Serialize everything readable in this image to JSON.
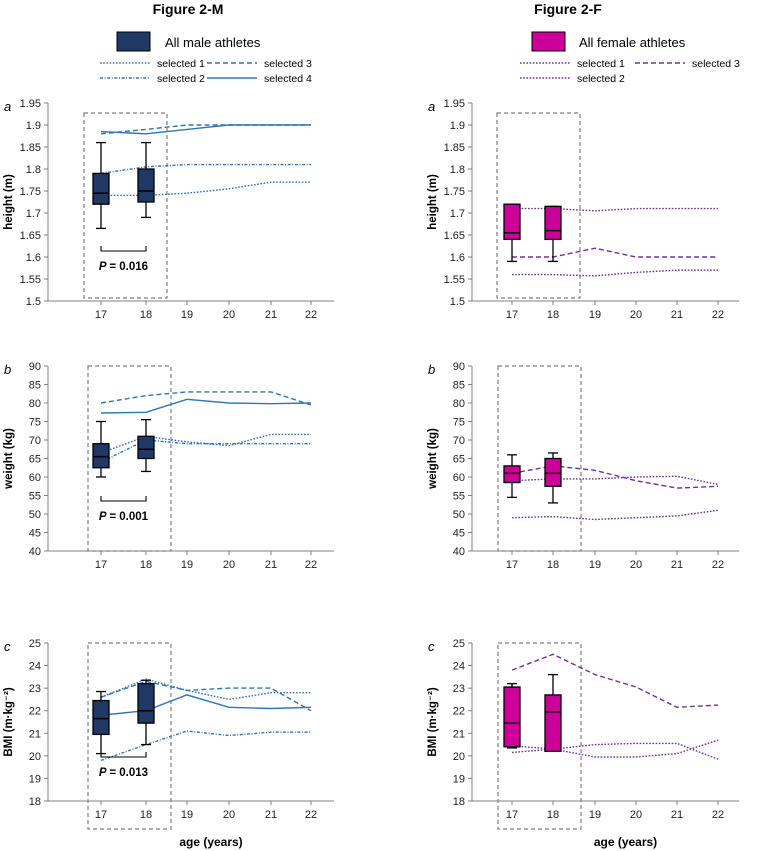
{
  "colors": {
    "male": "#2e75b6",
    "male_box": "#1f3864",
    "female": "#7030a0",
    "female_box": "#cc0099",
    "axis": "#808080"
  },
  "figures": [
    {
      "title": "Figure 2-M",
      "legend_main": "All male athletes",
      "legend_items": [
        "selected 1",
        "selected 2",
        "selected 3",
        "selected 4"
      ]
    },
    {
      "title": "Figure 2-F",
      "legend_main": "All female athletes",
      "legend_items": [
        "selected 1",
        "selected 2",
        "selected 3"
      ]
    }
  ],
  "chart_data": [
    {
      "id": "male-height",
      "type": "line",
      "figure": "Figure 2-M",
      "panel": "a",
      "title": "",
      "xlabel": "",
      "ylabel": "height (m)",
      "categories": [
        "17",
        "18",
        "19",
        "20",
        "21",
        "22"
      ],
      "yticks": [
        "1.5",
        "1.55",
        "1.6",
        "1.65",
        "1.7",
        "1.75",
        "1.8",
        "1.85",
        "1.9",
        "1.95"
      ],
      "ylim": [
        1.5,
        1.95
      ],
      "series": [
        {
          "name": "selected 1",
          "style": "dotted",
          "values": [
            1.74,
            1.74,
            1.745,
            1.755,
            1.77,
            1.77
          ]
        },
        {
          "name": "selected 2",
          "style": "dashdot",
          "values": [
            1.79,
            1.805,
            1.81,
            1.81,
            1.81,
            1.81
          ]
        },
        {
          "name": "selected 3",
          "style": "dashed",
          "values": [
            1.88,
            1.89,
            1.9,
            1.9,
            1.9,
            1.9
          ]
        },
        {
          "name": "selected 4",
          "style": "solid",
          "values": [
            1.885,
            1.88,
            1.89,
            1.9,
            1.9,
            1.9
          ]
        }
      ],
      "boxes": [
        {
          "x": "17",
          "min": 1.665,
          "q1": 1.72,
          "median": 1.745,
          "q3": 1.79,
          "max": 1.86
        },
        {
          "x": "18",
          "min": 1.69,
          "q1": 1.725,
          "median": 1.75,
          "q3": 1.8,
          "max": 1.86
        }
      ],
      "pvalue": "= 0.016"
    },
    {
      "id": "female-height",
      "type": "line",
      "figure": "Figure 2-F",
      "panel": "a",
      "title": "",
      "xlabel": "",
      "ylabel": "height (m)",
      "categories": [
        "17",
        "18",
        "19",
        "20",
        "21",
        "22"
      ],
      "yticks": [
        "1.5",
        "1.55",
        "1.6",
        "1.65",
        "1.7",
        "1.75",
        "1.8",
        "1.85",
        "1.9",
        "1.95"
      ],
      "ylim": [
        1.5,
        1.95
      ],
      "series": [
        {
          "name": "selected 1",
          "style": "dotted",
          "values": [
            1.71,
            1.71,
            1.705,
            1.71,
            1.71,
            1.71
          ]
        },
        {
          "name": "selected 2",
          "style": "dotted",
          "values": [
            1.56,
            1.56,
            1.557,
            1.565,
            1.57,
            1.57
          ]
        },
        {
          "name": "selected 3",
          "style": "dashed",
          "values": [
            1.6,
            1.6,
            1.62,
            1.6,
            1.6,
            1.6
          ]
        }
      ],
      "boxes": [
        {
          "x": "17",
          "min": 1.59,
          "q1": 1.64,
          "median": 1.655,
          "q3": 1.72,
          "max": 1.72
        },
        {
          "x": "18",
          "min": 1.59,
          "q1": 1.64,
          "median": 1.66,
          "q3": 1.715,
          "max": 1.715
        }
      ]
    },
    {
      "id": "male-weight",
      "type": "line",
      "figure": "Figure 2-M",
      "panel": "b",
      "title": "",
      "xlabel": "",
      "ylabel": "weight (kg)",
      "categories": [
        "17",
        "18",
        "19",
        "20",
        "21",
        "22"
      ],
      "yticks": [
        "40",
        "45",
        "50",
        "55",
        "60",
        "65",
        "70",
        "75",
        "80",
        "85",
        "90"
      ],
      "ylim": [
        40,
        90
      ],
      "series": [
        {
          "name": "selected 1",
          "style": "dotted",
          "values": [
            66.5,
            71,
            69.5,
            68.5,
            71.5,
            71.5
          ]
        },
        {
          "name": "selected 2",
          "style": "dashdot",
          "values": [
            64,
            70,
            69,
            69,
            69,
            69
          ]
        },
        {
          "name": "selected 3",
          "style": "dashed",
          "values": [
            80,
            82,
            83,
            83,
            83,
            79.5
          ]
        },
        {
          "name": "selected 4",
          "style": "solid",
          "values": [
            77.3,
            77.5,
            81,
            80,
            79.8,
            80
          ]
        }
      ],
      "boxes": [
        {
          "x": "17",
          "min": 60,
          "q1": 62.5,
          "median": 65.5,
          "q3": 69,
          "max": 75
        },
        {
          "x": "18",
          "min": 61.5,
          "q1": 65,
          "median": 67.5,
          "q3": 71,
          "max": 75.5
        }
      ],
      "pvalue": "= 0.001"
    },
    {
      "id": "female-weight",
      "type": "line",
      "figure": "Figure 2-F",
      "panel": "b",
      "title": "",
      "xlabel": "",
      "ylabel": "weight (kg)",
      "categories": [
        "17",
        "18",
        "19",
        "20",
        "21",
        "22"
      ],
      "yticks": [
        "40",
        "45",
        "50",
        "55",
        "60",
        "65",
        "70",
        "75",
        "80",
        "85",
        "90"
      ],
      "ylim": [
        40,
        90
      ],
      "series": [
        {
          "name": "selected 1",
          "style": "dotted",
          "values": [
            59,
            59.5,
            59.5,
            60,
            60.2,
            58
          ]
        },
        {
          "name": "selected 2",
          "style": "dotted",
          "values": [
            49,
            49.3,
            48.5,
            49,
            49.5,
            51
          ]
        },
        {
          "name": "selected 3",
          "style": "dashed",
          "values": [
            61,
            63,
            61.8,
            59,
            57,
            57.5
          ]
        }
      ],
      "boxes": [
        {
          "x": "17",
          "min": 54.5,
          "q1": 58.5,
          "median": 61,
          "q3": 63,
          "max": 66
        },
        {
          "x": "18",
          "min": 53,
          "q1": 57.5,
          "median": 61,
          "q3": 65,
          "max": 66.5
        }
      ]
    },
    {
      "id": "male-bmi",
      "type": "line",
      "figure": "Figure 2-M",
      "panel": "c",
      "title": "",
      "xlabel": "age (years)",
      "ylabel": "BMI (m·kg⁻²)",
      "categories": [
        "17",
        "18",
        "19",
        "20",
        "21",
        "22"
      ],
      "yticks": [
        "18",
        "19",
        "20",
        "21",
        "22",
        "23",
        "24",
        "25"
      ],
      "ylim": [
        18,
        25
      ],
      "series": [
        {
          "name": "selected 1",
          "style": "dotted",
          "values": [
            22.6,
            23.4,
            22.9,
            22.5,
            22.8,
            22.8
          ]
        },
        {
          "name": "selected 2",
          "style": "dashdot",
          "values": [
            19.8,
            20.5,
            21.1,
            20.9,
            21.05,
            21.05
          ]
        },
        {
          "name": "selected 3",
          "style": "dashed",
          "values": [
            22.6,
            23.3,
            22.9,
            23.0,
            23.0,
            22.0
          ]
        },
        {
          "name": "selected 4",
          "style": "solid",
          "values": [
            21.8,
            22.0,
            22.7,
            22.15,
            22.1,
            22.15
          ]
        }
      ],
      "boxes": [
        {
          "x": "17",
          "min": 20.1,
          "q1": 20.95,
          "median": 21.65,
          "q3": 22.45,
          "max": 22.85
        },
        {
          "x": "18",
          "min": 20.5,
          "q1": 21.45,
          "median": 22.0,
          "q3": 23.2,
          "max": 23.35
        }
      ],
      "pvalue": "= 0.013"
    },
    {
      "id": "female-bmi",
      "type": "line",
      "figure": "Figure 2-F",
      "panel": "c",
      "title": "",
      "xlabel": "age (years)",
      "ylabel": "BMI (m·kg⁻²)",
      "categories": [
        "17",
        "18",
        "19",
        "20",
        "21",
        "22"
      ],
      "yticks": [
        "18",
        "19",
        "20",
        "21",
        "22",
        "23",
        "24",
        "25"
      ],
      "ylim": [
        18,
        25
      ],
      "series": [
        {
          "name": "selected 1",
          "style": "dotted",
          "values": [
            20.45,
            20.3,
            20.5,
            20.55,
            20.55,
            19.85
          ]
        },
        {
          "name": "selected 2",
          "style": "dotted",
          "values": [
            20.15,
            20.3,
            19.95,
            19.95,
            20.1,
            20.7
          ]
        },
        {
          "name": "selected 3",
          "style": "dashed",
          "values": [
            23.8,
            24.5,
            23.6,
            23.05,
            22.15,
            22.25
          ]
        }
      ],
      "boxes": [
        {
          "x": "17",
          "min": 20.35,
          "q1": 20.4,
          "median": 21.45,
          "q3": 23.05,
          "max": 23.2
        },
        {
          "x": "18",
          "min": 20.2,
          "q1": 20.2,
          "median": 21.95,
          "q3": 22.7,
          "max": 23.6
        }
      ]
    }
  ]
}
